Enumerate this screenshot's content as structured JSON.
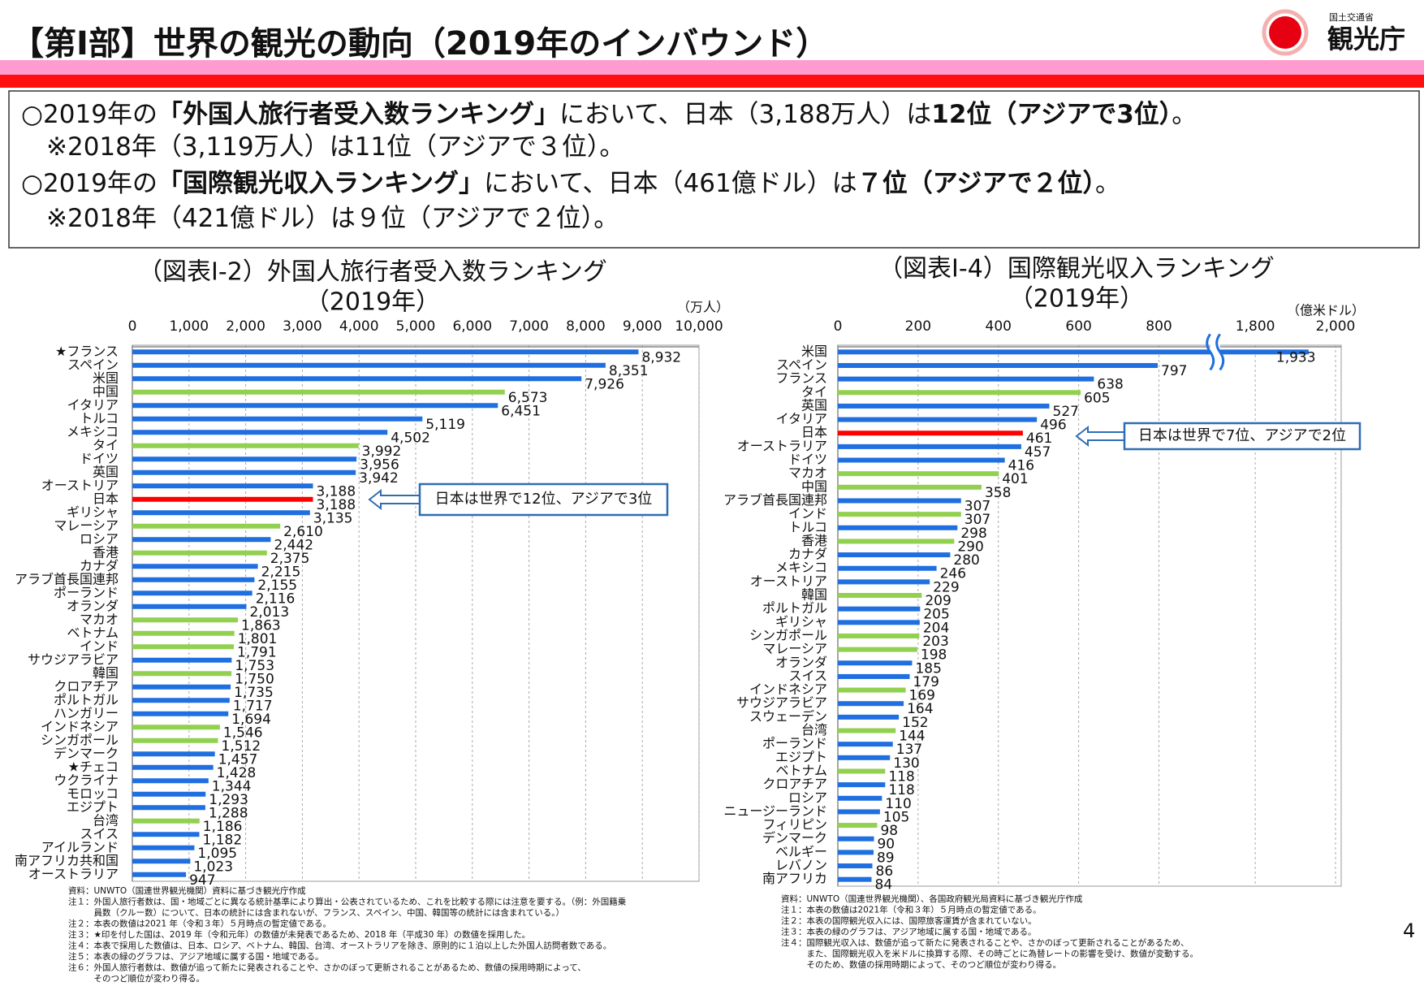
{
  "header": {
    "title": "【第Ⅰ部】世界の観光の動向（2019年のインバウンド）",
    "logo_small": "国土交通省",
    "logo_large": "観光庁"
  },
  "summary": [
    [
      {
        "text": "○2019年の"
      },
      {
        "text": "「外国人旅行者受入数ランキング」",
        "bold": true
      },
      {
        "text": "において、日本（3,188万人）は"
      },
      {
        "text": "12位（アジアで3位）",
        "bold": true
      },
      {
        "text": "。"
      }
    ],
    [
      {
        "text": "　※2018年（3,119万人）は11位（アジアで３位）。"
      }
    ],
    [
      {
        "text": "○2019年の"
      },
      {
        "text": "「国際観光収入ランキング」",
        "bold": true
      },
      {
        "text": "において、日本（461億ドル）は"
      },
      {
        "text": "７位（アジアで２位）",
        "bold": true
      },
      {
        "text": "。"
      }
    ],
    [
      {
        "text": "　※2018年（421億ドル）は９位（アジアで２位）。"
      }
    ]
  ],
  "chart_data": [
    {
      "type": "hbar",
      "title": "（図表Ⅰ-2）外国人旅行者受入数ランキング",
      "subtitle": "（2019年）",
      "unit": "（万人）",
      "categories": [
        "★フランス",
        "スペイン",
        "米国",
        "中国",
        "イタリア",
        "トルコ",
        "メキシコ",
        "タイ",
        "ドイツ",
        "英国",
        "オーストリア",
        "日本",
        "ギリシャ",
        "マレーシア",
        "ロシア",
        "香港",
        "カナダ",
        "アラブ首長国連邦",
        "ポーランド",
        "オランダ",
        "マカオ",
        "ベトナム",
        "インド",
        "サウジアラビア",
        "韓国",
        "クロアチア",
        "ポルトガル",
        "ハンガリー",
        "インドネシア",
        "シンガポール",
        "デンマーク",
        "★チェコ",
        "ウクライナ",
        "モロッコ",
        "エジプト",
        "台湾",
        "スイス",
        "アイルランド",
        "南アフリカ共和国",
        "オーストラリア"
      ],
      "values": [
        8932,
        8351,
        7926,
        6573,
        6451,
        5119,
        4502,
        3992,
        3956,
        3942,
        3188,
        3188,
        3135,
        2610,
        2442,
        2375,
        2215,
        2155,
        2116,
        2013,
        1863,
        1801,
        1791,
        1753,
        1750,
        1735,
        1717,
        1694,
        1546,
        1512,
        1457,
        1428,
        1344,
        1293,
        1288,
        1186,
        1182,
        1095,
        1023,
        947
      ],
      "value_labels": [
        "8,932",
        "8,351",
        "7,926",
        "6,573",
        "6,451",
        "5,119",
        "4,502",
        "3,992",
        "3,956",
        "3,942",
        "3,188",
        "3,188",
        "3,135",
        "2,610",
        "2,442",
        "2,375",
        "2,215",
        "2,155",
        "2,116",
        "2,013",
        "1,863",
        "1,801",
        "1,791",
        "1,753",
        "1,750",
        "1,735",
        "1,717",
        "1,694",
        "1,546",
        "1,512",
        "1,457",
        "1,428",
        "1,344",
        "1,293",
        "1,288",
        "1,186",
        "1,182",
        "1,095",
        "1,023",
        "947"
      ],
      "colors": [
        "#1f6fe0",
        "#1f6fe0",
        "#1f6fe0",
        "#92d050",
        "#1f6fe0",
        "#1f6fe0",
        "#1f6fe0",
        "#92d050",
        "#1f6fe0",
        "#1f6fe0",
        "#1f6fe0",
        "#ff0000",
        "#1f6fe0",
        "#92d050",
        "#1f6fe0",
        "#92d050",
        "#1f6fe0",
        "#1f6fe0",
        "#1f6fe0",
        "#1f6fe0",
        "#92d050",
        "#92d050",
        "#92d050",
        "#1f6fe0",
        "#92d050",
        "#1f6fe0",
        "#1f6fe0",
        "#1f6fe0",
        "#92d050",
        "#92d050",
        "#1f6fe0",
        "#1f6fe0",
        "#1f6fe0",
        "#1f6fe0",
        "#1f6fe0",
        "#92d050",
        "#1f6fe0",
        "#1f6fe0",
        "#1f6fe0",
        "#1f6fe0"
      ],
      "xlim": [
        0,
        10000
      ],
      "xticks": [
        0,
        {
          "value": 1000,
          "label": "1,000"
        },
        {
          "value": 2000,
          "label": "2,000"
        },
        {
          "value": 3000,
          "label": "3,000"
        },
        {
          "value": 4000,
          "label": "4,000"
        },
        {
          "value": 5000,
          "label": "5,000"
        },
        {
          "value": 6000,
          "label": "6,000"
        },
        {
          "value": 7000,
          "label": "7,000"
        },
        {
          "value": 8000,
          "label": "8,000"
        },
        {
          "value": 9000,
          "label": "9,000"
        },
        {
          "value": 10000,
          "label": "10,000"
        }
      ],
      "grid": true,
      "annotation": "日本は世界で12位、アジアで3位",
      "notes": [
        "資料：UNWTO（国連世界観光機関）資料に基づき観光庁作成",
        "注１：外国人旅行者数は、国・地域ごとに異なる統計基準により算出・公表されているため、これを比較する際には注意を要する。（例：外国籍乗",
        "　　　員数（クルー数）について、日本の統計には含まれないが、フランス、スペイン、中国、韓国等の統計には含まれている。）",
        "注２：本表の数値は2021 年（令和３年）５月時点の暫定値である。",
        "注３：★印を付した国は、2019 年（令和元年）の数値が未発表であるため、2018 年（平成30 年）の数値を採用した。",
        "注４：本表で採用した数値は、日本、ロシア、ベトナム、韓国、台湾、オーストラリアを除き、原則的に１泊以上した外国人訪問者数である。",
        "注５：本表の緑のグラフは、アジア地域に属する国・地域である。",
        "注６：外国人旅行者数は、数値が追って新たに発表されることや、さかのぼって更新されることがあるため、数値の採用時期によって、",
        "　　　そのつど順位が変わり得る。"
      ]
    },
    {
      "type": "hbar",
      "title": "（図表Ⅰ-4）国際観光収入ランキング",
      "subtitle": "（2019年）",
      "unit": "（億米ドル）",
      "categories": [
        "米国",
        "スペイン",
        "フランス",
        "タイ",
        "英国",
        "イタリア",
        "日本",
        "オーストラリア",
        "ドイツ",
        "マカオ",
        "中国",
        "アラブ首長国連邦",
        "インド",
        "トルコ",
        "香港",
        "カナダ",
        "メキシコ",
        "オーストリア",
        "韓国",
        "ポルトガル",
        "ギリシャ",
        "シンガポール",
        "マレーシア",
        "オランダ",
        "スイス",
        "インドネシア",
        "サウジアラビア",
        "スウェーデン",
        "台湾",
        "ポーランド",
        "エジプト",
        "ベトナム",
        "クロアチア",
        "ロシア",
        "ニュージーランド",
        "フィリピン",
        "デンマーク",
        "ベルギー",
        "レバノン",
        "南アフリカ"
      ],
      "values": [
        1933,
        797,
        638,
        605,
        527,
        496,
        461,
        457,
        416,
        401,
        358,
        307,
        307,
        298,
        290,
        280,
        246,
        229,
        209,
        205,
        204,
        203,
        198,
        185,
        179,
        169,
        164,
        152,
        144,
        137,
        130,
        118,
        118,
        110,
        105,
        98,
        90,
        89,
        86,
        84
      ],
      "value_labels": [
        "1,933",
        "797",
        "638",
        "605",
        "527",
        "496",
        "461",
        "457",
        "416",
        "401",
        "358",
        "307",
        "307",
        "298",
        "290",
        "280",
        "246",
        "229",
        "209",
        "205",
        "204",
        "203",
        "198",
        "185",
        "179",
        "169",
        "164",
        "152",
        "144",
        "137",
        "130",
        "118",
        "118",
        "110",
        "105",
        "98",
        "90",
        "89",
        "86",
        "84"
      ],
      "colors": [
        "#1f6fe0",
        "#1f6fe0",
        "#1f6fe0",
        "#92d050",
        "#1f6fe0",
        "#1f6fe0",
        "#ff0000",
        "#1f6fe0",
        "#1f6fe0",
        "#92d050",
        "#92d050",
        "#1f6fe0",
        "#92d050",
        "#1f6fe0",
        "#92d050",
        "#1f6fe0",
        "#1f6fe0",
        "#1f6fe0",
        "#92d050",
        "#1f6fe0",
        "#1f6fe0",
        "#92d050",
        "#92d050",
        "#1f6fe0",
        "#1f6fe0",
        "#92d050",
        "#1f6fe0",
        "#1f6fe0",
        "#92d050",
        "#1f6fe0",
        "#1f6fe0",
        "#92d050",
        "#1f6fe0",
        "#1f6fe0",
        "#1f6fe0",
        "#92d050",
        "#1f6fe0",
        "#1f6fe0",
        "#1f6fe0",
        "#1f6fe0"
      ],
      "xlim": [
        0,
        2000
      ],
      "xbreak": [
        940,
        1700
      ],
      "xticks": [
        0,
        200,
        400,
        600,
        800,
        {
          "value": 1800,
          "label": "1,800"
        },
        {
          "value": 2000,
          "label": "2,000"
        }
      ],
      "grid": true,
      "annotation": "日本は世界で7位、アジアで2位",
      "notes": [
        "資料：UNWTO（国連世界観光機関）、各国政府観光局資料に基づき観光庁作成",
        "注１：本表の数値は2021年（令和３年）５月時点の暫定値である。",
        "注２：本表の国際観光収入には、国際旅客運賃が含まれていない。",
        "注３：本表の緑のグラフは、アジア地域に属する国・地域である。",
        "注４：国際観光収入は、数値が追って新たに発表されることや、さかのぼって更新されることがあるため、",
        "　　　また、国際観光収入を米ドルに換算する際、その時ごとに為替レートの影響を受け、数値が変動する。",
        "　　　そのため、数値の採用時期によって、そのつど順位が変わり得る。"
      ]
    }
  ],
  "page_number": "4"
}
